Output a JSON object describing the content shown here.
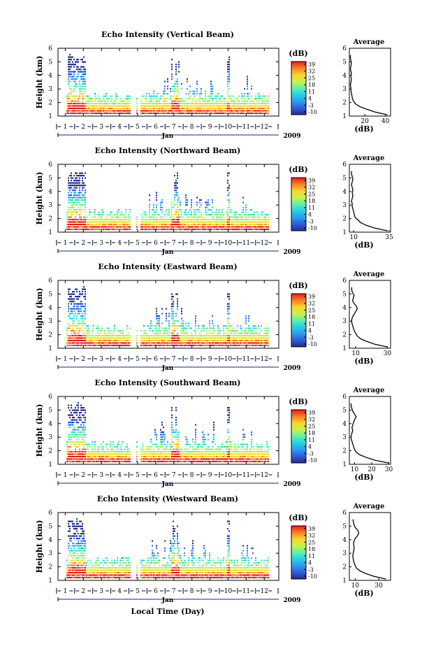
{
  "figure": {
    "xlabel": "Local Time (Day)",
    "month_label": "Jan",
    "year_label": "2009",
    "ylabel": "Height (km)",
    "colorbar_unit": "(dB)",
    "average_title": "Average",
    "average_xlabel": "(dB)"
  },
  "chart_data": [
    {
      "type": "heatmap",
      "title": "Echo Intensity (Vertical Beam)",
      "xlabel": "",
      "ylabel": "Height (km)",
      "x_ticks": [
        "1",
        "2",
        "3",
        "4",
        "5",
        "6",
        "7",
        "8",
        "9",
        "10",
        "11",
        "12"
      ],
      "y_ticks": [
        "1",
        "2",
        "3",
        "4",
        "5",
        "6"
      ],
      "ylim": [
        1,
        6
      ],
      "colorbar_ticks": [
        "39",
        "32",
        "25",
        "18",
        "11",
        "4",
        "-3",
        "-10"
      ],
      "average": {
        "title": "Average",
        "xlabel": "(dB)",
        "xticks": [
          "20",
          "40"
        ],
        "xlim": [
          5,
          45
        ],
        "height": [
          1.1,
          1.3,
          1.5,
          1.7,
          1.9,
          2.1,
          2.3,
          2.5,
          2.7,
          2.9,
          3.1,
          3.3,
          3.5,
          3.7,
          3.9,
          4.1,
          4.3,
          4.5,
          4.7,
          4.9,
          5.1,
          5.3,
          5.5
        ],
        "values": [
          42,
          30,
          22,
          15,
          11,
          9,
          8,
          7.5,
          7,
          6.5,
          6.5,
          6,
          6.5,
          7,
          6.5,
          7,
          6.5,
          6,
          6.5,
          7,
          6.5,
          6,
          6
        ]
      }
    },
    {
      "type": "heatmap",
      "title": "Echo Intensity (Northward Beam)",
      "xlabel": "",
      "ylabel": "Height (km)",
      "x_ticks": [
        "1",
        "2",
        "3",
        "4",
        "5",
        "6",
        "7",
        "8",
        "9",
        "10",
        "11",
        "12"
      ],
      "y_ticks": [
        "1",
        "2",
        "3",
        "4",
        "5",
        "6"
      ],
      "ylim": [
        1,
        6
      ],
      "colorbar_ticks": [
        "39",
        "32",
        "25",
        "18",
        "11",
        "4",
        "-3",
        "-10"
      ],
      "average": {
        "title": "Average",
        "xlabel": "(dB)",
        "xticks": [
          "10",
          "35"
        ],
        "xlim": [
          7,
          36
        ],
        "height": [
          1.1,
          1.3,
          1.5,
          1.7,
          1.9,
          2.1,
          2.3,
          2.5,
          2.7,
          2.9,
          3.1,
          3.3,
          3.5,
          3.7,
          3.9,
          4.1,
          4.3,
          4.5,
          4.7,
          4.9,
          5.1,
          5.3,
          5.5
        ],
        "values": [
          34,
          25,
          19,
          15,
          13,
          11,
          10.5,
          10,
          9.5,
          9,
          9,
          8.5,
          9,
          9.5,
          9,
          9.5,
          9,
          8.5,
          9,
          9.5,
          9,
          8.5,
          8.5
        ]
      }
    },
    {
      "type": "heatmap",
      "title": "Echo Intensity (Eastward Beam)",
      "xlabel": "",
      "ylabel": "Height (km)",
      "x_ticks": [
        "1",
        "2",
        "3",
        "4",
        "5",
        "6",
        "7",
        "8",
        "9",
        "10",
        "11",
        "12"
      ],
      "y_ticks": [
        "1",
        "2",
        "3",
        "4",
        "5",
        "6"
      ],
      "ylim": [
        1,
        6
      ],
      "colorbar_ticks": [
        "39",
        "32",
        "25",
        "18",
        "11",
        "4",
        "-3",
        "-10"
      ],
      "average": {
        "title": "Average",
        "xlabel": "(dB)",
        "xticks": [
          "10",
          "30"
        ],
        "xlim": [
          6,
          32
        ],
        "height": [
          1.1,
          1.3,
          1.5,
          1.7,
          1.9,
          2.1,
          2.3,
          2.5,
          2.7,
          2.9,
          3.1,
          3.3,
          3.5,
          3.7,
          3.9,
          4.1,
          4.3,
          4.5,
          4.7,
          4.9,
          5.1,
          5.3,
          5.5
        ],
        "values": [
          30,
          22,
          17,
          13,
          11,
          10,
          9,
          8.5,
          8,
          7.5,
          7.5,
          8,
          9,
          10,
          11,
          10.5,
          9,
          8,
          8.5,
          9,
          8,
          7.5,
          7.5
        ]
      }
    },
    {
      "type": "heatmap",
      "title": "Echo Intensity (Southward Beam)",
      "xlabel": "",
      "ylabel": "Height (km)",
      "x_ticks": [
        "1",
        "2",
        "3",
        "4",
        "5",
        "6",
        "7",
        "8",
        "9",
        "10",
        "11",
        "12"
      ],
      "y_ticks": [
        "1",
        "2",
        "3",
        "4",
        "5",
        "6"
      ],
      "ylim": [
        1,
        6
      ],
      "colorbar_ticks": [
        "39",
        "32",
        "25",
        "18",
        "11",
        "4",
        "-3",
        "-10"
      ],
      "average": {
        "title": "Average",
        "xlabel": "(dB)",
        "xticks": [
          "10",
          "20",
          "30"
        ],
        "xlim": [
          7,
          31
        ],
        "height": [
          1.1,
          1.3,
          1.5,
          1.7,
          1.9,
          2.1,
          2.3,
          2.5,
          2.7,
          2.9,
          3.1,
          3.3,
          3.5,
          3.7,
          3.9,
          4.1,
          4.3,
          4.5,
          4.7,
          4.9,
          5.1,
          5.3,
          5.5
        ],
        "values": [
          30,
          22,
          17,
          13,
          11,
          10,
          9.5,
          9,
          8.5,
          8,
          8,
          8.5,
          9,
          8.5,
          9,
          9.5,
          10,
          11,
          10,
          9,
          8.5,
          8,
          8
        ]
      }
    },
    {
      "type": "heatmap",
      "title": "Echo Intensity (Westward Beam)",
      "xlabel": "Local Time (Day)",
      "ylabel": "Height (km)",
      "x_ticks": [
        "1",
        "2",
        "3",
        "4",
        "5",
        "6",
        "7",
        "8",
        "9",
        "10",
        "11",
        "12"
      ],
      "y_ticks": [
        "1",
        "2",
        "3",
        "4",
        "5",
        "6"
      ],
      "ylim": [
        1,
        6
      ],
      "colorbar_ticks": [
        "39",
        "32",
        "25",
        "18",
        "11",
        "4",
        "-3",
        "-10"
      ],
      "average": {
        "title": "Average",
        "xlabel": "(dB)",
        "xticks": [
          "10",
          "30"
        ],
        "xlim": [
          5,
          40
        ],
        "height": [
          1.1,
          1.3,
          1.5,
          1.7,
          1.9,
          2.1,
          2.3,
          2.5,
          2.7,
          2.9,
          3.1,
          3.3,
          3.5,
          3.7,
          3.9,
          4.1,
          4.3,
          4.5,
          4.7,
          4.9,
          5.1,
          5.3,
          5.5
        ],
        "values": [
          36,
          26,
          19,
          14,
          11,
          10,
          9,
          8.5,
          8,
          8,
          8.5,
          9,
          9,
          8.5,
          9,
          10,
          12,
          13,
          12,
          10,
          9,
          8.5,
          8
        ]
      }
    }
  ]
}
